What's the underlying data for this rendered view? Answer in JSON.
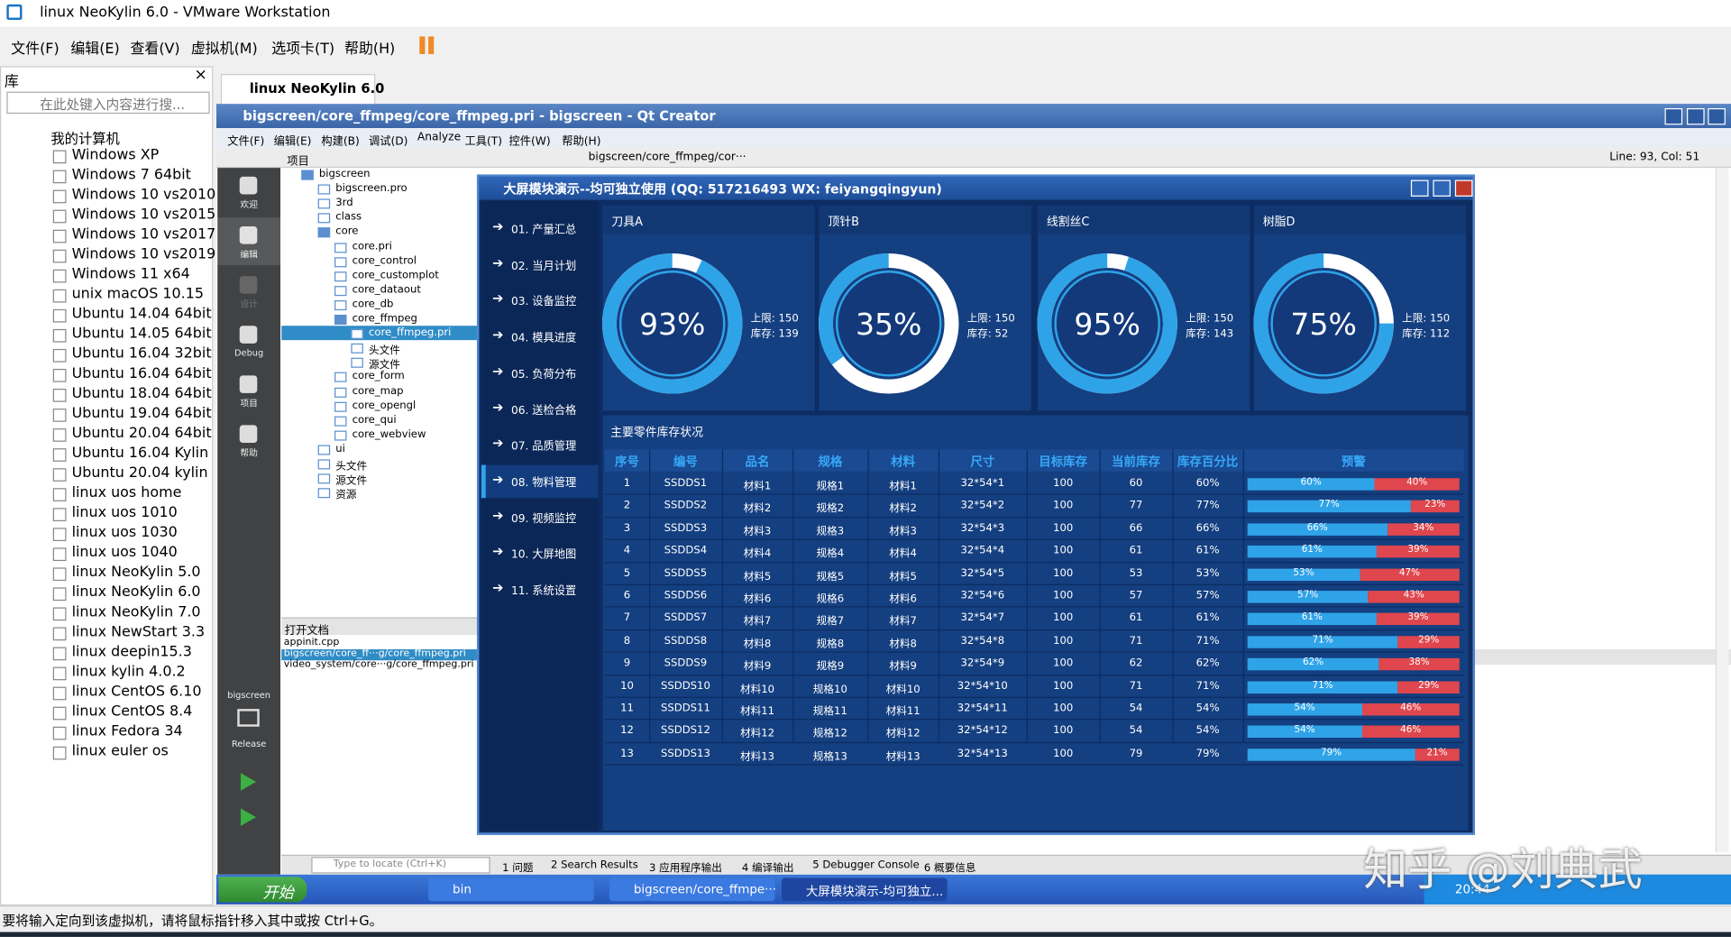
{
  "vmware": {
    "title": "linux NeoKylin 6.0 - VMware Workstation",
    "menu": [
      "文件(F)",
      "编辑(E)",
      "查看(V)",
      "虚拟机(M)",
      "选项卡(T)",
      "帮助(H)"
    ],
    "library": {
      "title": "库",
      "search": "在此处键入内容进行搜...",
      "root": "我的计算机",
      "items": [
        "Windows XP",
        "Windows 7 64bit",
        "Windows 10 vs2010",
        "Windows 10 vs2015",
        "Windows 10 vs2017",
        "Windows 10 vs2019",
        "Windows 11 x64",
        "unix macOS 10.15",
        "Ubuntu 14.04 64bit",
        "Ubuntu 14.05 64bit",
        "Ubuntu 16.04 32bit",
        "Ubuntu 16.04 64bit",
        "Ubuntu 18.04 64bit",
        "Ubuntu 19.04 64bit",
        "Ubuntu 20.04 64bit",
        "Ubuntu 16.04 Kylin",
        "Ubuntu 20.04 kylin",
        "linux uos home",
        "linux uos 1010",
        "linux uos 1030",
        "linux uos 1040",
        "linux NeoKylin 5.0",
        "linux NeoKylin 6.0",
        "linux NeoKylin 7.0",
        "linux NewStart 3.3",
        "linux deepin15.3",
        "linux kylin 4.0.2",
        "linux CentOS 6.10",
        "linux CentOS 8.4",
        "linux Fedora 34",
        "linux euler os"
      ]
    },
    "tab": "linux NeoKylin 6.0",
    "status": "要将输入定向到该虚拟机，请将鼠标指针移入其中或按 Ctrl+G。"
  },
  "qt": {
    "title": "bigscreen/core_ffmpeg/core_ffmpeg.pri - bigscreen - Qt Creator",
    "menu": [
      "文件(F)",
      "编辑(E)",
      "构建(B)",
      "调试(D)",
      "Analyze",
      "工具(T)",
      "控件(W)",
      "帮助(H)"
    ],
    "modes": [
      "欢迎",
      "编辑",
      "设计",
      "Debug",
      "项目",
      "帮助"
    ],
    "kit": "bigscreen",
    "build": "Release",
    "projects_label": "项目",
    "tree": {
      "label": "bigscreen",
      "children": [
        {
          "label": "bigscreen.pro"
        },
        {
          "label": "3rd"
        },
        {
          "label": "class"
        },
        {
          "label": "core",
          "children": [
            {
              "label": "core.pri"
            },
            {
              "label": "core_control"
            },
            {
              "label": "core_customplot"
            },
            {
              "label": "core_dataout"
            },
            {
              "label": "core_db"
            },
            {
              "label": "core_ffmpeg",
              "children": [
                {
                  "label": "core_ffmpeg.pri"
                },
                {
                  "label": "头文件"
                },
                {
                  "label": "源文件"
                }
              ]
            },
            {
              "label": "core_form"
            },
            {
              "label": "core_map"
            },
            {
              "label": "core_opengl"
            },
            {
              "label": "core_qui"
            },
            {
              "label": "core_webview"
            }
          ]
        },
        {
          "label": "ui"
        },
        {
          "label": "头文件"
        },
        {
          "label": "源文件"
        },
        {
          "label": "资源"
        }
      ]
    },
    "open_docs_label": "打开文档",
    "open_docs": [
      "appinit.cpp",
      "bigscreen/core_ff···g/core_ffmpeg.pri",
      "video_system/core···g/core_ffmpeg.pri"
    ],
    "file_combo": "bigscreen/core_ffmpeg/cor···",
    "cursor": "Line: 93, Col: 51",
    "locate": "Type to locate (Ctrl+K)",
    "panes": [
      "1 问题",
      "2 Search Results",
      "3 应用程序输出",
      "4 编译输出",
      "5 Debugger Console",
      "6 概要信息"
    ]
  },
  "taskbar": {
    "start": "开始",
    "items": [
      "bin",
      "bigscreen/core_ffmpe···",
      "大屏模块演示-均可独立..."
    ],
    "clock": "20:44"
  },
  "watermark": "知乎 @刘典武",
  "app": {
    "title": "大屏模块演示--均可独立使用 (QQ: 517216493  WX: feiyangqingyun)",
    "nav": [
      "01. 产量汇总",
      "02. 当月计划",
      "03. 设备监控",
      "04. 模具进度",
      "05. 负荷分布",
      "06. 送检合格",
      "07. 品质管理",
      "08. 物料管理",
      "09. 视频监控",
      "10. 大屏地图",
      "11. 系统设置"
    ],
    "gauges": [
      {
        "name": "刀具A",
        "value": 93,
        "value_label": "93%",
        "upper": "上限: 150",
        "stock": "库存: 139"
      },
      {
        "name": "顶针B",
        "value": 35,
        "value_label": "35%",
        "upper": "上限: 150",
        "stock": "库存: 52"
      },
      {
        "name": "线割丝C",
        "value": 95,
        "value_label": "95%",
        "upper": "上限: 150",
        "stock": "库存: 143"
      },
      {
        "name": "树脂D",
        "value": 75,
        "value_label": "75%",
        "upper": "上限: 150",
        "stock": "库存: 112"
      }
    ],
    "table": {
      "title": "主要零件库存状况",
      "headers": [
        "序号",
        "编号",
        "品名",
        "规格",
        "材料",
        "尺寸",
        "目标库存",
        "当前库存",
        "库存百分比",
        "预警"
      ],
      "rows": [
        {
          "cells": [
            "1",
            "SSDDS1",
            "材料1",
            "规格1",
            "材料1",
            "32*54*1",
            "100",
            "60",
            "60%"
          ],
          "warn": {
            "values": [
              60,
              40
            ],
            "value_labels": [
              "60%",
              "40%"
            ]
          }
        },
        {
          "cells": [
            "2",
            "SSDDS2",
            "材料2",
            "规格2",
            "材料2",
            "32*54*2",
            "100",
            "77",
            "77%"
          ],
          "warn": {
            "values": [
              77,
              23
            ],
            "value_labels": [
              "77%",
              "23%"
            ]
          }
        },
        {
          "cells": [
            "3",
            "SSDDS3",
            "材料3",
            "规格3",
            "材料3",
            "32*54*3",
            "100",
            "66",
            "66%"
          ],
          "warn": {
            "values": [
              66,
              34
            ],
            "value_labels": [
              "66%",
              "34%"
            ]
          }
        },
        {
          "cells": [
            "4",
            "SSDDS4",
            "材料4",
            "规格4",
            "材料4",
            "32*54*4",
            "100",
            "61",
            "61%"
          ],
          "warn": {
            "values": [
              61,
              39
            ],
            "value_labels": [
              "61%",
              "39%"
            ]
          }
        },
        {
          "cells": [
            "5",
            "SSDDS5",
            "材料5",
            "规格5",
            "材料5",
            "32*54*5",
            "100",
            "53",
            "53%"
          ],
          "warn": {
            "values": [
              53,
              47
            ],
            "value_labels": [
              "53%",
              "47%"
            ]
          }
        },
        {
          "cells": [
            "6",
            "SSDDS6",
            "材料6",
            "规格6",
            "材料6",
            "32*54*6",
            "100",
            "57",
            "57%"
          ],
          "warn": {
            "values": [
              57,
              43
            ],
            "value_labels": [
              "57%",
              "43%"
            ]
          }
        },
        {
          "cells": [
            "7",
            "SSDDS7",
            "材料7",
            "规格7",
            "材料7",
            "32*54*7",
            "100",
            "61",
            "61%"
          ],
          "warn": {
            "values": [
              61,
              39
            ],
            "value_labels": [
              "61%",
              "39%"
            ]
          }
        },
        {
          "cells": [
            "8",
            "SSDDS8",
            "材料8",
            "规格8",
            "材料8",
            "32*54*8",
            "100",
            "71",
            "71%"
          ],
          "warn": {
            "values": [
              71,
              29
            ],
            "value_labels": [
              "71%",
              "29%"
            ]
          }
        },
        {
          "cells": [
            "9",
            "SSDDS9",
            "材料9",
            "规格9",
            "材料9",
            "32*54*9",
            "100",
            "62",
            "62%"
          ],
          "warn": {
            "values": [
              62,
              38
            ],
            "value_labels": [
              "62%",
              "38%"
            ]
          }
        },
        {
          "cells": [
            "10",
            "SSDDS10",
            "材料10",
            "规格10",
            "材料10",
            "32*54*10",
            "100",
            "71",
            "71%"
          ],
          "warn": {
            "values": [
              71,
              29
            ],
            "value_labels": [
              "71%",
              "29%"
            ]
          }
        },
        {
          "cells": [
            "11",
            "SSDDS11",
            "材料11",
            "规格11",
            "材料11",
            "32*54*11",
            "100",
            "54",
            "54%"
          ],
          "warn": {
            "values": [
              54,
              46
            ],
            "value_labels": [
              "54%",
              "46%"
            ]
          }
        },
        {
          "cells": [
            "12",
            "SSDDS12",
            "材料12",
            "规格12",
            "材料12",
            "32*54*12",
            "100",
            "54",
            "54%"
          ],
          "warn": {
            "values": [
              54,
              46
            ],
            "value_labels": [
              "54%",
              "46%"
            ]
          }
        },
        {
          "cells": [
            "13",
            "SSDDS13",
            "材料13",
            "规格13",
            "材料13",
            "32*54*13",
            "100",
            "79",
            "79%"
          ],
          "warn": {
            "values": [
              79,
              21
            ],
            "value_labels": [
              "79%",
              "21%"
            ]
          }
        }
      ]
    }
  }
}
